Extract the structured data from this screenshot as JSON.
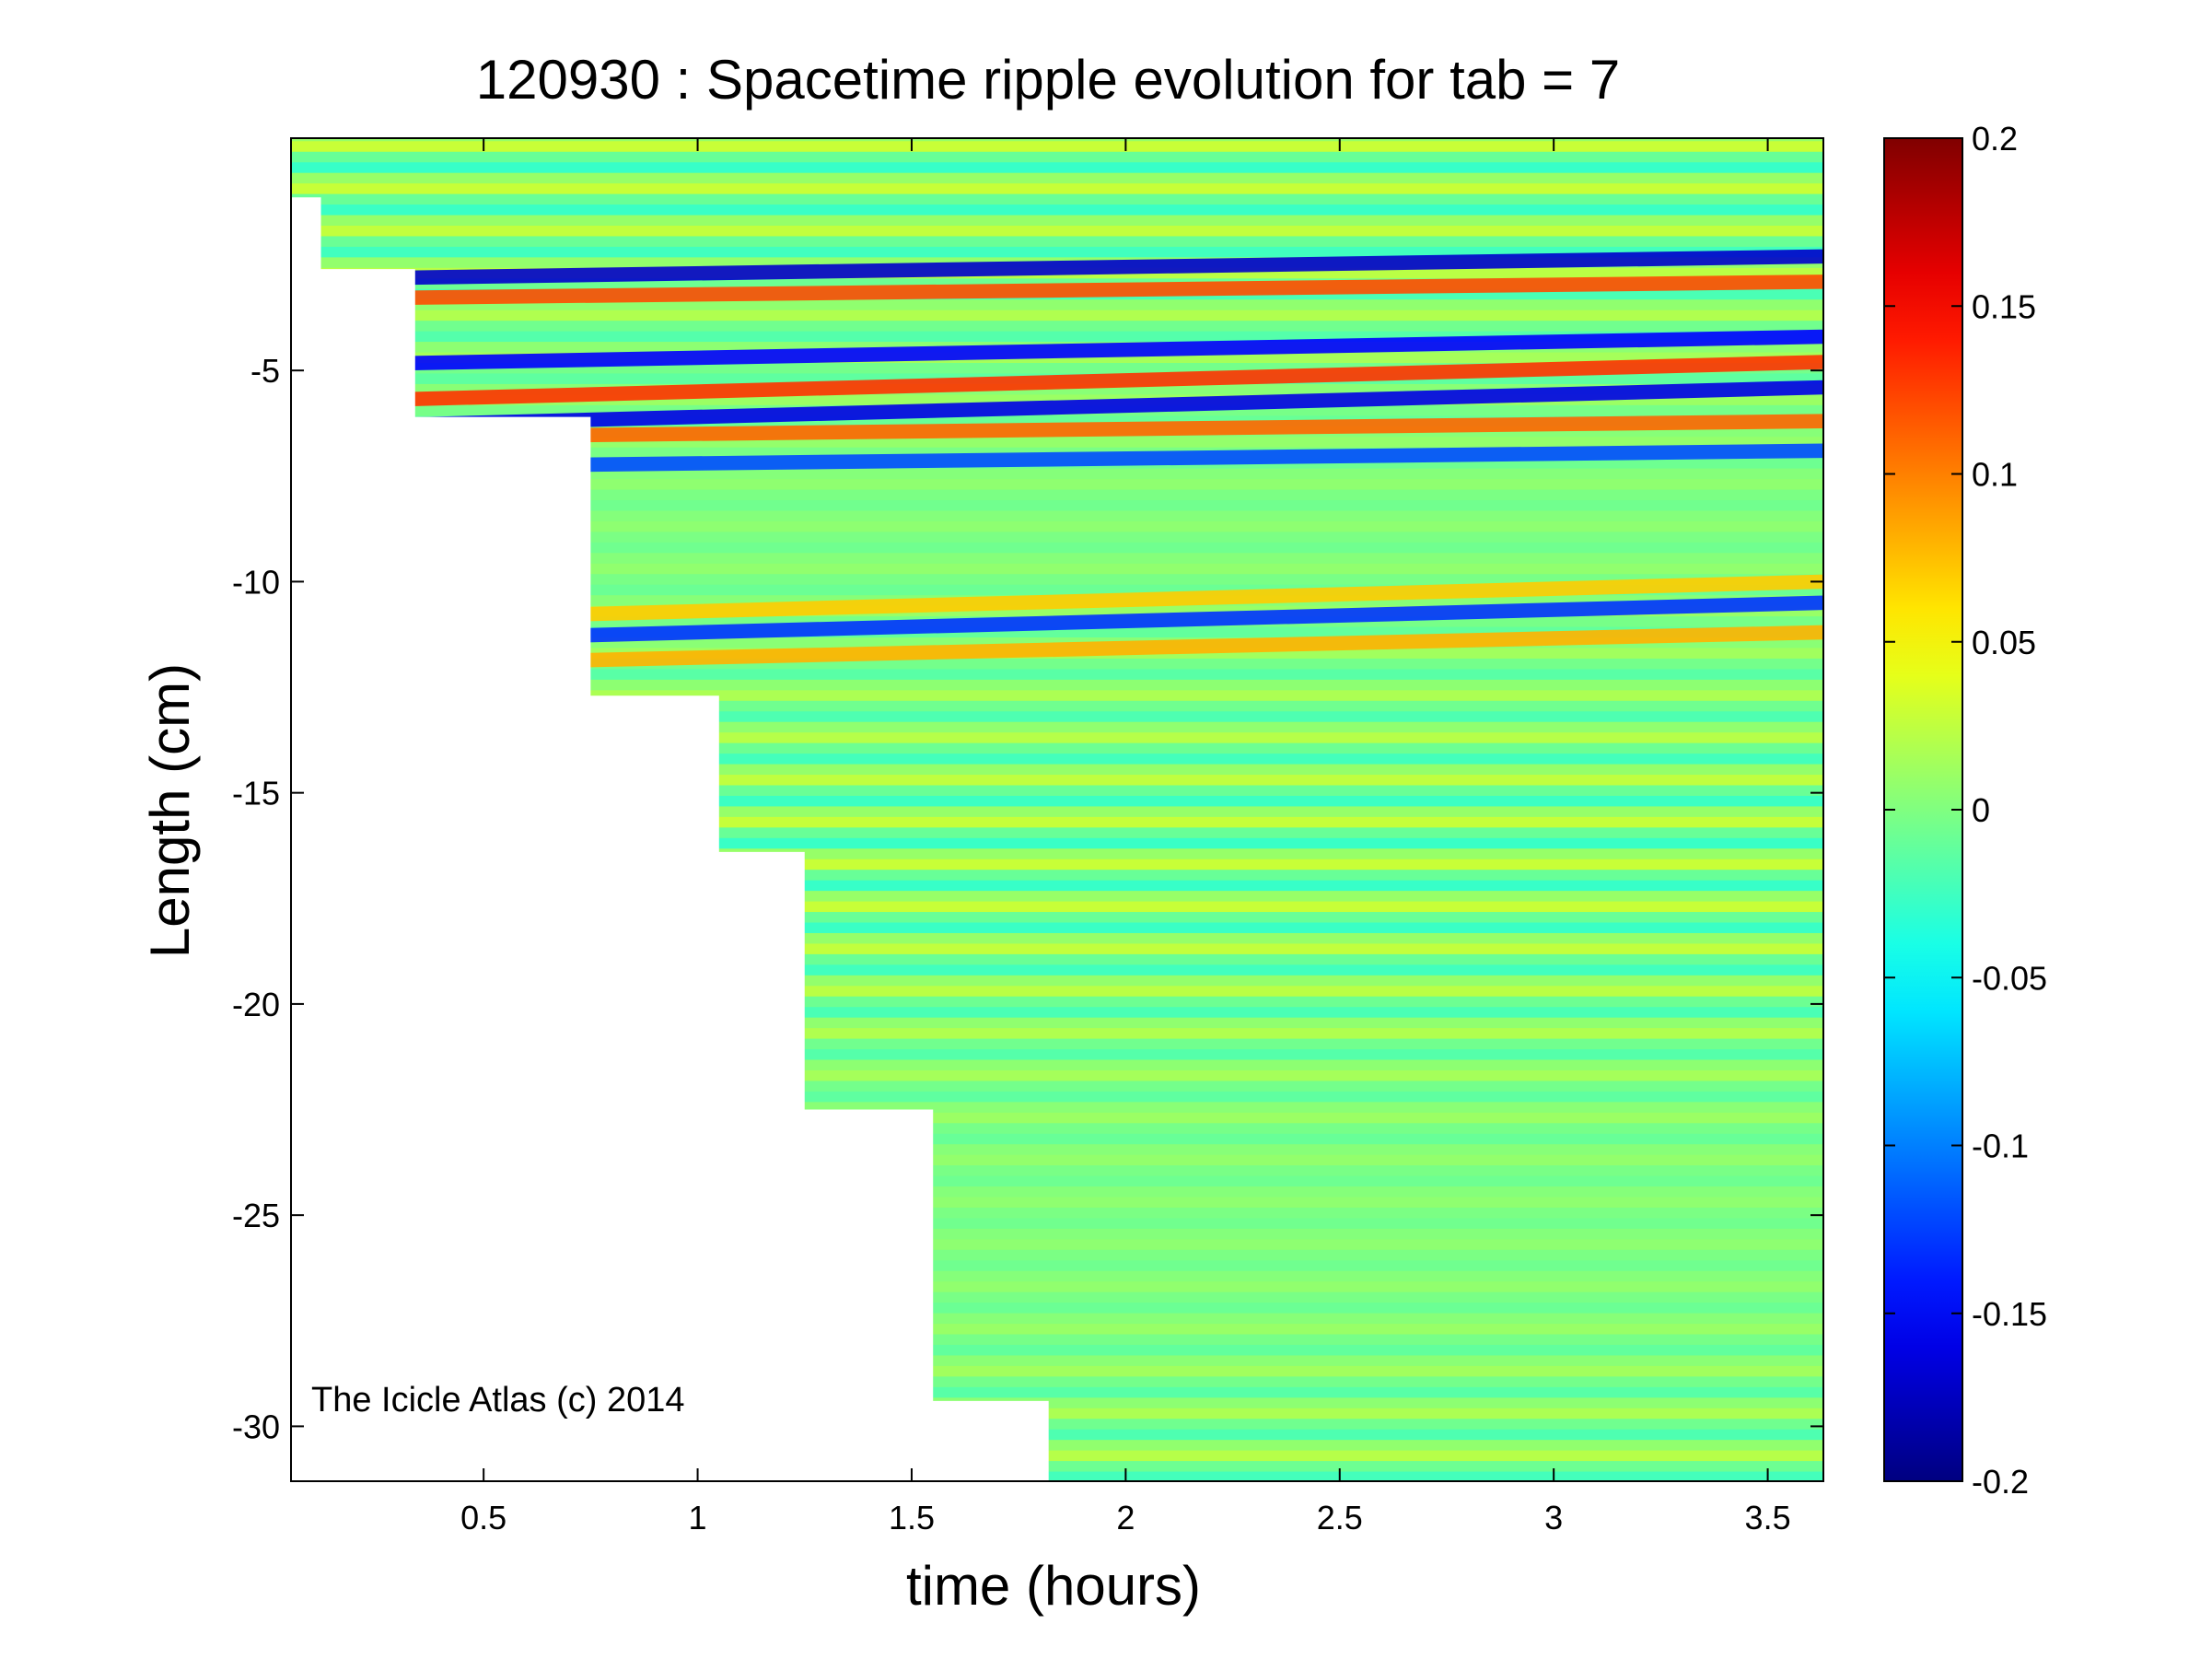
{
  "chart_data": {
    "type": "heatmap",
    "title": "120930 : Spacetime ripple evolution for tab = 7",
    "xlabel": "time (hours)",
    "ylabel": "Length (cm)",
    "xlim": [
      0.05,
      3.63
    ],
    "ylim": [
      -31.3,
      0.5
    ],
    "xticks": [
      0.5,
      1,
      1.5,
      2,
      2.5,
      3,
      3.5
    ],
    "xtick_labels": [
      "0.5",
      "1",
      "1.5",
      "2",
      "2.5",
      "3",
      "3.5"
    ],
    "yticks": [
      -5,
      -10,
      -15,
      -20,
      -25,
      -30
    ],
    "ytick_labels": [
      "-5",
      "-10",
      "-15",
      "-20",
      "-25",
      "-30"
    ],
    "colorbar": {
      "colormap": "jet",
      "clim": [
        -0.2,
        0.2
      ],
      "ticks": [
        0.2,
        0.15,
        0.1,
        0.05,
        0,
        -0.05,
        -0.1,
        -0.15,
        -0.2
      ],
      "tick_labels": [
        "0.2",
        "0.15",
        "0.1",
        "0.05",
        "0",
        "-0.05",
        "-0.1",
        "-0.15",
        "-0.2"
      ]
    },
    "data_start_front": [
      {
        "t": 0.05,
        "length": -0.9
      },
      {
        "t": 0.12,
        "length": -0.9
      },
      {
        "t": 0.12,
        "length": -2.6
      },
      {
        "t": 0.34,
        "length": -2.6
      },
      {
        "t": 0.34,
        "length": -6.1
      },
      {
        "t": 0.75,
        "length": -6.1
      },
      {
        "t": 0.75,
        "length": -12.7
      },
      {
        "t": 1.05,
        "length": -12.7
      },
      {
        "t": 1.05,
        "length": -16.4
      },
      {
        "t": 1.25,
        "length": -16.4
      },
      {
        "t": 1.25,
        "length": -22.5
      },
      {
        "t": 1.55,
        "length": -22.5
      },
      {
        "t": 1.55,
        "length": -29.4
      },
      {
        "t": 1.82,
        "length": -29.4
      },
      {
        "t": 1.82,
        "length": -31.3
      }
    ],
    "ripple_wavelength_cm": 1.0,
    "ripple_amplitude": 0.03,
    "strong_bands": [
      {
        "length_at_t1": -2.7,
        "length_at_end": -2.3,
        "amplitude": -0.17
      },
      {
        "length_at_t1": -3.2,
        "length_at_end": -2.9,
        "amplitude": 0.12
      },
      {
        "length_at_t1": -4.7,
        "length_at_end": -4.2,
        "amplitude": -0.15
      },
      {
        "length_at_t1": -5.5,
        "length_at_end": -4.8,
        "amplitude": 0.13
      },
      {
        "length_at_t1": -6.1,
        "length_at_end": -5.4,
        "amplitude": -0.16
      },
      {
        "length_at_t1": -6.5,
        "length_at_end": -6.2,
        "amplitude": 0.11
      },
      {
        "length_at_t1": -7.2,
        "length_at_end": -6.9,
        "amplitude": -0.12
      },
      {
        "length_at_t1": -10.7,
        "length_at_end": -10.0,
        "amplitude": 0.07
      },
      {
        "length_at_t1": -11.2,
        "length_at_end": -10.5,
        "amplitude": -0.13
      },
      {
        "length_at_t1": -11.8,
        "length_at_end": -11.2,
        "amplitude": 0.08
      }
    ],
    "annotation": "The Icicle Atlas (c) 2014"
  }
}
